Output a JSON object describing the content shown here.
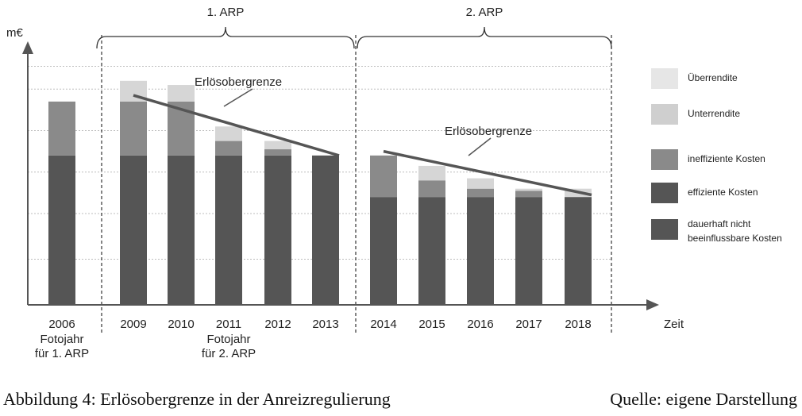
{
  "chart_data": {
    "type": "bar",
    "stacked": true,
    "ylabel": "m€",
    "xlabel": "Zeit",
    "grid": true,
    "categories": [
      "2006",
      "2009",
      "2010",
      "2011",
      "2012",
      "2013",
      "2014",
      "2015",
      "2016",
      "2017",
      "2018"
    ],
    "category_sublabels": {
      "2006": [
        "Fotojahr",
        "für 1. ARP"
      ],
      "2011": [
        "Fotojahr",
        "für 2. ARP"
      ]
    },
    "series": [
      {
        "name": "dauerhaft nicht beeinflussbare Kosten / effiziente Kosten",
        "color": "#555555",
        "values": [
          36,
          36,
          36,
          36,
          36,
          36,
          26,
          26,
          26,
          26,
          26
        ]
      },
      {
        "name": "ineffiziente Kosten",
        "color": "#8a8a8a",
        "values": [
          13,
          13,
          13,
          3.5,
          1.5,
          0,
          10,
          4,
          2,
          1.5,
          0
        ]
      },
      {
        "name": "Überrendite",
        "color": "#d6d6d6",
        "values": [
          0,
          5,
          4,
          3.5,
          2,
          0,
          0,
          3.5,
          2.5,
          0.5,
          2
        ]
      }
    ],
    "revenue_caps": [
      {
        "label": "Erlösobergrenze",
        "from": "2009",
        "to": "2013",
        "y_start": 50.5,
        "y_end": 36
      },
      {
        "label": "Erlösobergrenze",
        "from": "2014",
        "to": "2018",
        "y_start": 37,
        "y_end": 26.5
      }
    ],
    "periods": [
      {
        "label": "1. ARP",
        "from": "2009",
        "to": "2013"
      },
      {
        "label": "2. ARP",
        "from": "2014",
        "to": "2018"
      }
    ],
    "ylim": [
      0,
      62
    ]
  },
  "legend": [
    {
      "label": "Überrendite",
      "color": "#e6e6e6"
    },
    {
      "label": "Unterrendite",
      "color": "#cfcfcf"
    },
    {
      "label": "ineffiziente Kosten",
      "color": "#8a8a8a"
    },
    {
      "label": "effiziente Kosten",
      "color": "#555555"
    },
    {
      "label": "dauerhaft nicht beeinflussbare Kosten",
      "lines": [
        "dauerhaft nicht",
        "beeinflussbare Kosten"
      ],
      "color": "#555555"
    }
  ],
  "caption": {
    "left": "Abbildung 4: Erlösobergrenze in der Anreizregulierung",
    "right": "Quelle: eigene Darstellung"
  }
}
